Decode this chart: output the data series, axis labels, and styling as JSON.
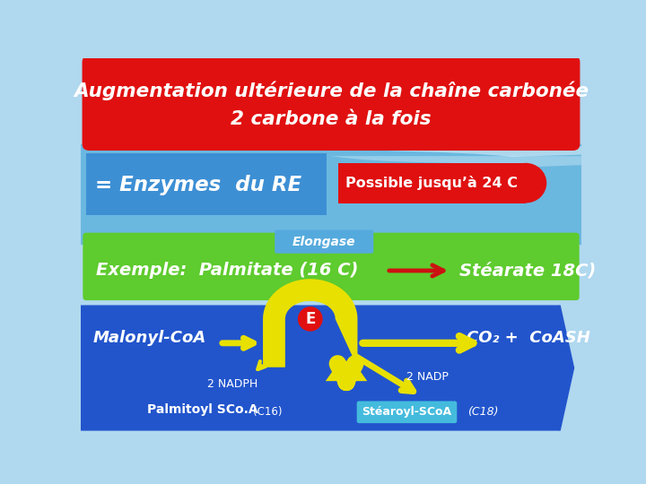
{
  "title_line1": "Augmentation ultérieure de la chaîne carbonée",
  "title_line2": "2 carbone à la fois",
  "title_bg": "#e01010",
  "title_text_color": "#ffffff",
  "enzymes_text": "= Enzymes  du RE",
  "enzymes_bg": "#3d8fd4",
  "mid_bg": "#6ab8e0",
  "possible_text": "Possible jusqu’à 24 C",
  "possible_bg": "#e01010",
  "possible_text_color": "#ffffff",
  "elongase_text": "Elongase",
  "elongase_bg": "#55aadd",
  "exemple_text": "Exemple:  Palmitate (16 C)",
  "stearate_text": "Stéarate 18C)",
  "green_bg": "#5ecb2e",
  "bottom_bg": "#2255cc",
  "malonyl_text": "Malonyl-CoA",
  "co2_text": "CO₂ +  CoASH",
  "nadph_text": "2 NADPH",
  "nadp_text": "2 NADP",
  "palmitoyl_text": "Palmitoyl SCo.A",
  "c16_text": "(C16)",
  "stearoyl_text": "Stéaroyl-SCoA",
  "c18_text": "(C18)",
  "stearoyl_bg": "#44bbdd",
  "e_text": "E",
  "e_bg": "#e01010",
  "yellow": "#e8e000",
  "yellow_dark": "#c8c000",
  "wave_color1": "#aaddee",
  "wave_color2": "#c8eaf8",
  "background_color": "#b0d8ef"
}
